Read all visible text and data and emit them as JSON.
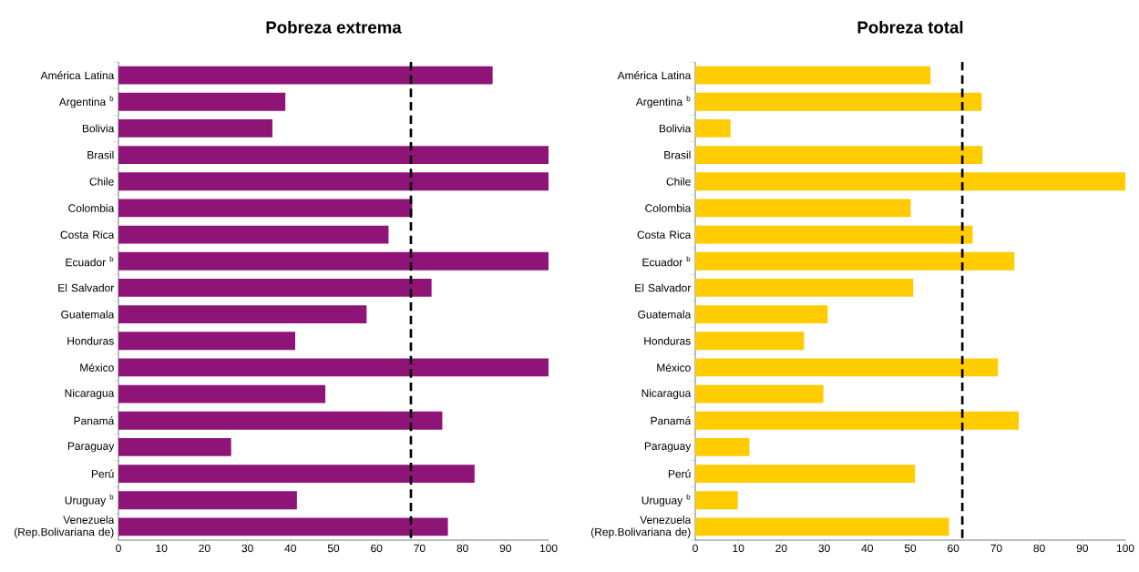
{
  "chart_data": [
    {
      "type": "bar",
      "orientation": "horizontal",
      "title": "Pobreza extrema",
      "categories": [
        "América Latina",
        "Argentina $^{b}$",
        "Bolivia",
        "Brasil",
        "Chile",
        "Colombia",
        "Costa Rica",
        "Ecuador $^{b}$",
        "El Salvador",
        "Guatemala",
        "Honduras",
        "México",
        "Nicaragua",
        "Panamá",
        "Paraguay",
        "Perú",
        "Uruguay $^{b}$",
        "Venezuela (Rep.Bolivariana de)"
      ],
      "values": [
        87.0,
        38.8,
        35.8,
        100,
        100,
        68.3,
        62.8,
        100,
        72.8,
        57.7,
        41.1,
        100,
        48.1,
        75.3,
        26.2,
        82.8,
        41.5,
        76.6
      ],
      "color": "#8f1477",
      "xlim": [
        0,
        100
      ],
      "xticks": [
        0,
        10,
        20,
        30,
        40,
        50,
        60,
        70,
        80,
        90,
        100
      ],
      "grid": false,
      "ref_lines": [
        {
          "axis": "x",
          "value": 68.0,
          "color": "#000000",
          "line_style": "dashed"
        }
      ]
    },
    {
      "type": "bar",
      "orientation": "horizontal",
      "title": "Pobreza total",
      "categories": [
        "América Latina",
        "Argentina $^{b}$",
        "Bolivia",
        "Brasil",
        "Chile",
        "Colombia",
        "Costa Rica",
        "Ecuador $^{b}$",
        "El Salvador",
        "Guatemala",
        "Honduras",
        "México",
        "Nicaragua",
        "Panamá",
        "Paraguay",
        "Perú",
        "Uruguay $^{b}$",
        "Venezuela (Rep.Bolivariana de)"
      ],
      "values": [
        54.7,
        66.6,
        8.2,
        66.8,
        100,
        50.1,
        64.5,
        74.2,
        50.7,
        30.8,
        25.3,
        70.4,
        29.8,
        75.2,
        12.6,
        51.1,
        9.9,
        59.0
      ],
      "color": "#ffcc00",
      "xlim": [
        0,
        100
      ],
      "xticks": [
        0,
        10,
        20,
        30,
        40,
        50,
        60,
        70,
        80,
        90,
        100
      ],
      "grid": false,
      "ref_lines": [
        {
          "axis": "x",
          "value": 62.1,
          "color": "#000000",
          "line_style": "dashed"
        }
      ]
    }
  ]
}
